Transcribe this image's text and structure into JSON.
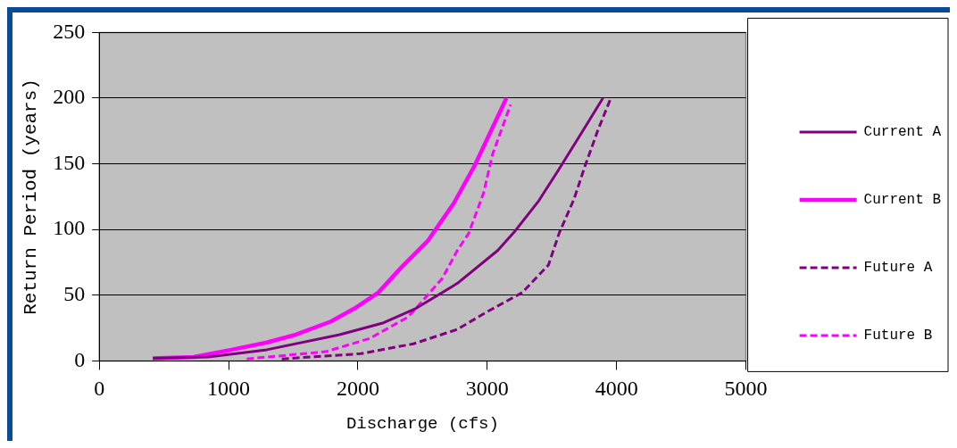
{
  "chart_data": {
    "type": "line",
    "xlabel": "Discharge (cfs)",
    "ylabel": "Return Period (years)",
    "xlim": [
      0,
      5000
    ],
    "xticks": [
      0,
      1000,
      2000,
      3000,
      4000,
      5000
    ],
    "ylim": [
      0,
      250
    ],
    "yticks": [
      0,
      50,
      100,
      150,
      200,
      250
    ],
    "grid": "y",
    "legend": "right",
    "marker": "none",
    "series": [
      {
        "name": "Current A",
        "color": "#800080",
        "line_style": "solid",
        "x": [
          414,
          840,
          1296,
          1859,
          2198,
          2449,
          2768,
          3080,
          3216,
          3399,
          3555,
          3738,
          3894
        ],
        "values": [
          2,
          3,
          8.5,
          20,
          29,
          40,
          59,
          84,
          99,
          122,
          146,
          175,
          200
        ]
      },
      {
        "name": "Current B",
        "color": "#ff00ff",
        "line_style": "solid",
        "x": [
          414,
          733,
          1024,
          1296,
          1520,
          1791,
          1974,
          2157,
          2334,
          2537,
          2741,
          2904,
          3148
        ],
        "values": [
          2,
          3,
          8.5,
          14,
          20,
          30,
          40,
          52,
          71,
          91,
          120,
          149,
          200
        ]
      },
      {
        "name": "Future A",
        "color": "#800080",
        "line_style": "dashed",
        "x": [
          1411,
          2022,
          2429,
          2768,
          2992,
          3270,
          3473,
          3555,
          3670,
          3758,
          3853,
          3955
        ],
        "values": [
          1.5,
          5.5,
          13,
          24,
          37,
          52,
          73,
          97,
          123,
          149,
          175,
          200
        ]
      },
      {
        "name": "Future B",
        "color": "#ff00ff",
        "line_style": "dashed",
        "x": [
          1140,
          1750,
          2089,
          2381,
          2449,
          2653,
          2768,
          2856,
          2972,
          3040,
          3180
        ],
        "values": [
          1.5,
          7,
          17,
          33,
          40,
          63,
          84,
          97,
          128,
          157,
          195
        ]
      }
    ]
  }
}
